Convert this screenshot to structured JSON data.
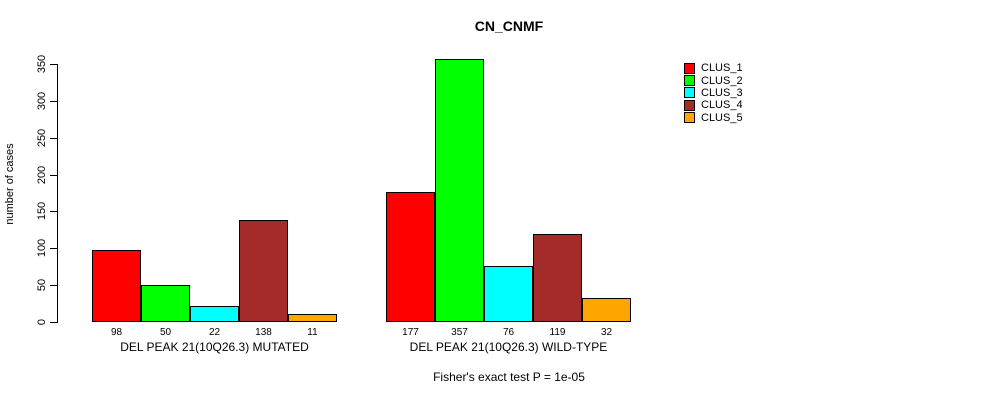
{
  "chart_data": {
    "type": "bar",
    "title": "CN_CNMF",
    "ylabel": "number of cases",
    "xlabel": "",
    "yticks": [
      0,
      50,
      100,
      150,
      200,
      250,
      300,
      350
    ],
    "ylim": [
      0,
      357
    ],
    "grid": false,
    "legend_position": "right",
    "annotation": "Fisher's exact test P = 1e-05",
    "series": [
      {
        "name": "CLUS_1",
        "color": "#FF0000"
      },
      {
        "name": "CLUS_2",
        "color": "#00FF00"
      },
      {
        "name": "CLUS_3",
        "color": "#00FFFF"
      },
      {
        "name": "CLUS_4",
        "color": "#A52A2A"
      },
      {
        "name": "CLUS_5",
        "color": "#FFA500"
      }
    ],
    "groups": [
      {
        "label": "DEL PEAK 21(10Q26.3) MUTATED",
        "values": [
          98,
          50,
          22,
          138,
          11
        ]
      },
      {
        "label": "DEL PEAK 21(10Q26.3) WILD-TYPE",
        "values": [
          177,
          357,
          76,
          119,
          32
        ]
      }
    ]
  }
}
